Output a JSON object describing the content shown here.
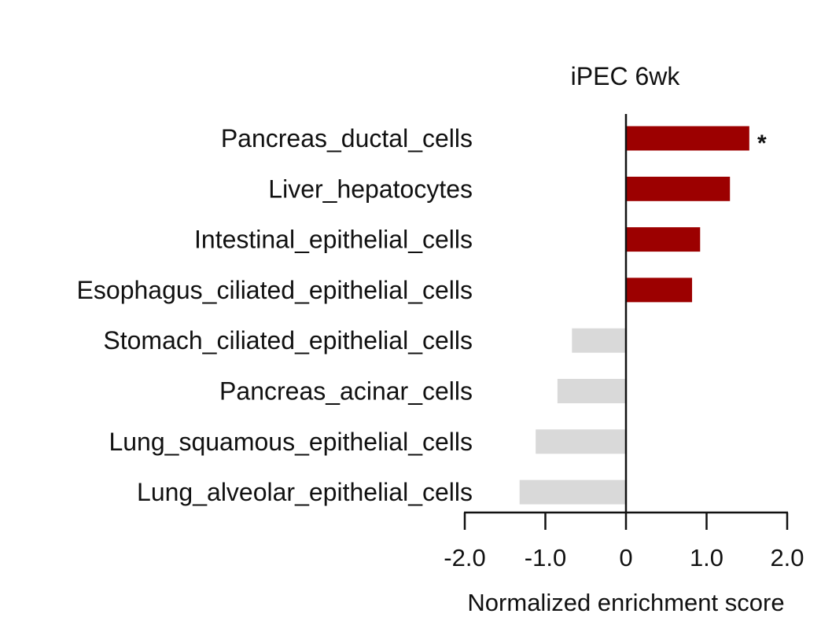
{
  "chart_data": {
    "type": "bar",
    "orientation": "horizontal",
    "title": "iPEC 6wk",
    "xlabel": "Normalized enrichment score",
    "ylabel": "",
    "xlim": [
      -2.0,
      2.0
    ],
    "xticks": [
      -2.0,
      -1.0,
      0,
      1.0,
      2.0
    ],
    "xtick_labels": [
      "-2.0",
      "-1.0",
      "0",
      "1.0",
      "2.0"
    ],
    "grid": false,
    "categories": [
      "Pancreas_ductal_cells",
      "Liver_hepatocytes",
      "Intestinal_epithelial_cells",
      "Esophagus_ciliated_epithelial_cells",
      "Stomach_ciliated_epithelial_cells",
      "Pancreas_acinar_cells",
      "Lung_squamous_epithelial_cells",
      "Lung_alveolar_epithelial_cells"
    ],
    "values": [
      1.53,
      1.29,
      0.92,
      0.82,
      -0.67,
      -0.85,
      -1.12,
      -1.32
    ],
    "annotations": [
      {
        "category": "Pancreas_ductal_cells",
        "text": "*"
      }
    ],
    "colors": {
      "positive": "#9c0000",
      "negative": "#d9d9d9",
      "axis": "#111111"
    }
  }
}
